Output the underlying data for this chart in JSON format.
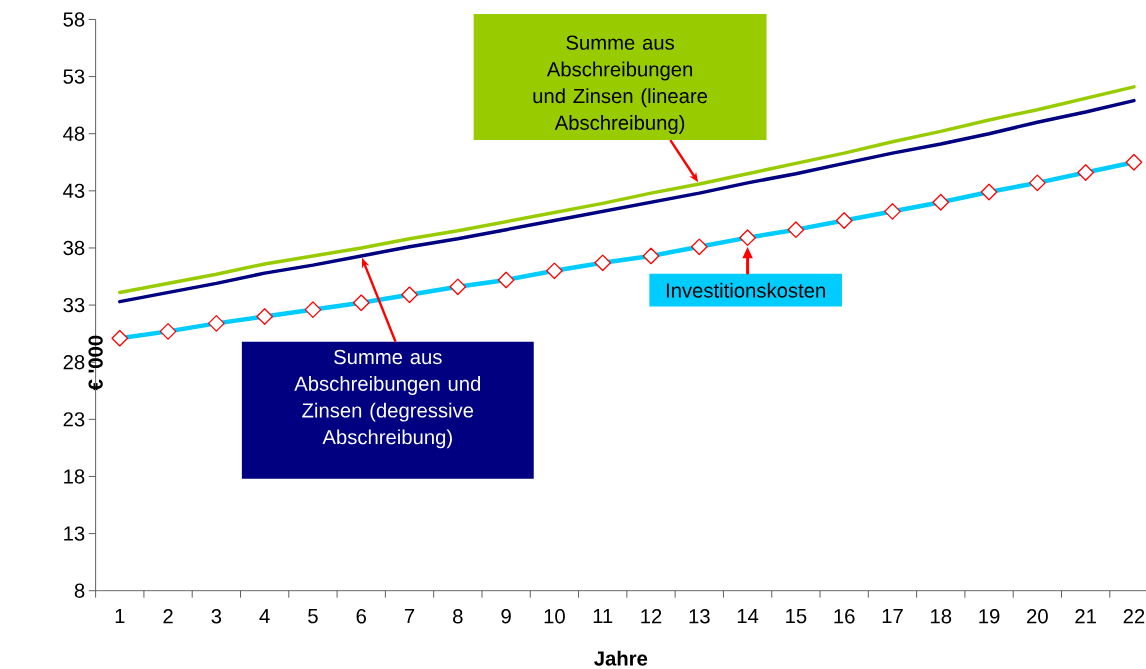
{
  "chart_data": {
    "type": "line",
    "xlabel": "Jahre",
    "ylabel": "€ '000",
    "categories": [
      "1",
      "2",
      "3",
      "4",
      "5",
      "6",
      "7",
      "8",
      "9",
      "10",
      "11",
      "12",
      "13",
      "14",
      "15",
      "16",
      "17",
      "18",
      "19",
      "20",
      "21",
      "22"
    ],
    "ylim": [
      8,
      58
    ],
    "yticks": [
      8,
      13,
      18,
      23,
      28,
      33,
      38,
      43,
      48,
      53,
      58
    ],
    "series": [
      {
        "name": "Summe aus Abschreibungen und Zinsen (lineare Abschreibung)",
        "color": "#99cc00",
        "values": [
          34.1,
          34.9,
          35.7,
          36.6,
          37.3,
          38.0,
          38.8,
          39.5,
          40.3,
          41.1,
          41.9,
          42.8,
          43.6,
          44.5,
          45.4,
          46.3,
          47.3,
          48.2,
          49.2,
          50.1,
          51.1,
          52.1
        ]
      },
      {
        "name": "Summe aus Abschreibungen und Zinsen (degressive Abschreibung)",
        "color": "#000080",
        "values": [
          33.3,
          34.1,
          34.9,
          35.8,
          36.5,
          37.3,
          38.1,
          38.8,
          39.6,
          40.4,
          41.2,
          42.0,
          42.8,
          43.7,
          44.5,
          45.4,
          46.3,
          47.1,
          48.0,
          49.0,
          49.9,
          50.9
        ]
      },
      {
        "name": "Investitionskosten",
        "color": "#00ccff",
        "marker": "diamond",
        "values": [
          30.1,
          30.7,
          31.4,
          32.0,
          32.6,
          33.2,
          33.9,
          34.6,
          35.2,
          36.0,
          36.7,
          37.3,
          38.1,
          38.9,
          39.6,
          40.4,
          41.2,
          42.0,
          42.9,
          43.7,
          44.6,
          45.5
        ]
      }
    ]
  }
}
